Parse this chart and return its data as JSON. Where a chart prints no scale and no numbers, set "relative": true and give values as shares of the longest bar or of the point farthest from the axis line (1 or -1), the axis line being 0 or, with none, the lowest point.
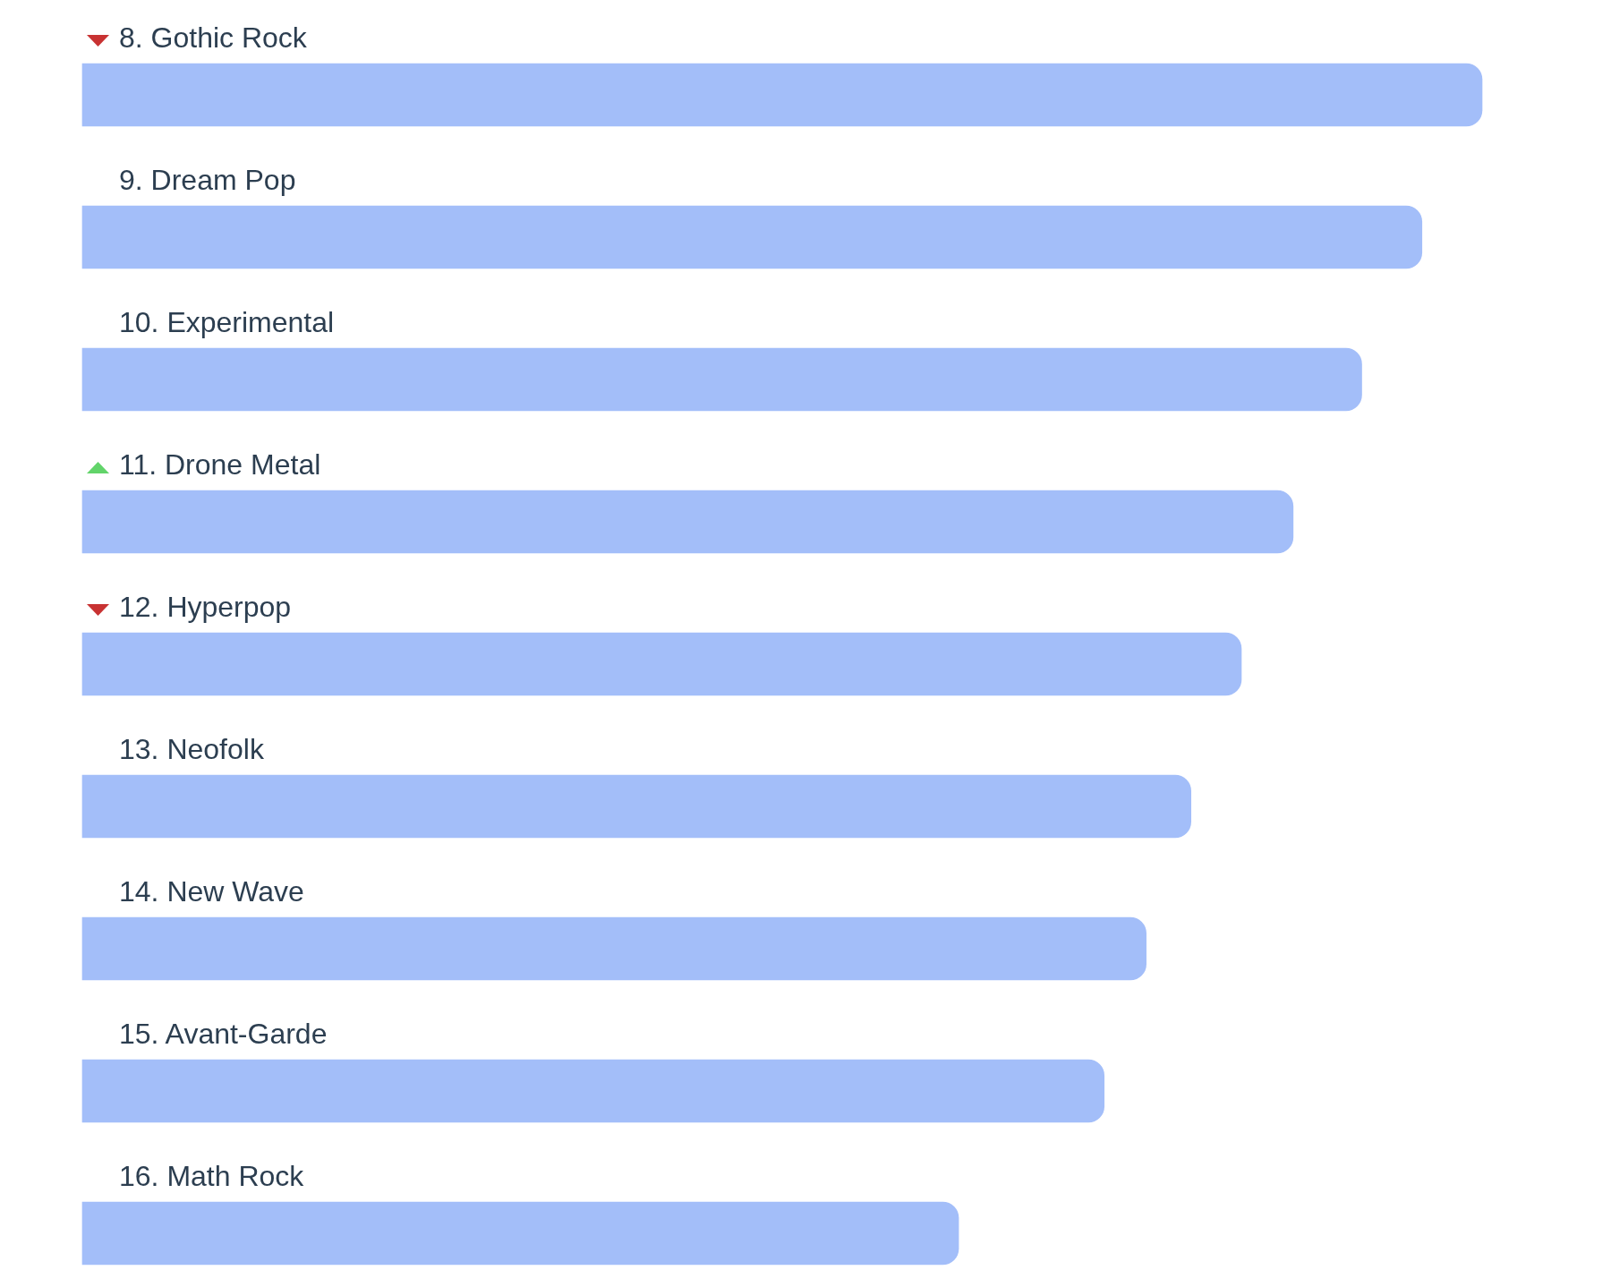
{
  "chart_data": {
    "type": "bar",
    "orientation": "horizontal",
    "relative": true,
    "categories": [
      "8. Gothic Rock",
      "9. Dream Pop",
      "10. Experimental",
      "11. Drone Metal",
      "12. Hyperpop",
      "13. Neofolk",
      "14. New Wave",
      "15. Avant-Garde",
      "16. Math Rock"
    ],
    "values": [
      1,
      0.957,
      0.914,
      0.865,
      0.828,
      0.792,
      0.76,
      0.73,
      0.626
    ],
    "color": "#a3bef9"
  }
}
